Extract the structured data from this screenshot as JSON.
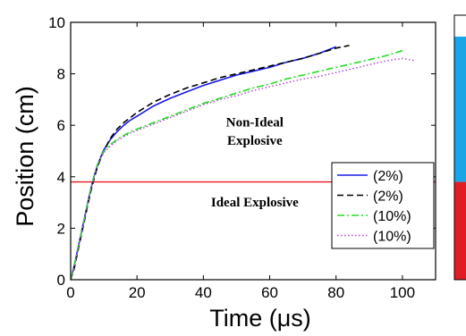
{
  "chart_data": {
    "type": "line",
    "xlabel": "Time (μs)",
    "ylabel": "Position (cm)",
    "xlim": [
      0,
      110
    ],
    "ylim": [
      0,
      10
    ],
    "xticks": [
      "0",
      "20",
      "40",
      "60",
      "80",
      "100"
    ],
    "yticks": [
      "0",
      "2",
      "4",
      "6",
      "8",
      "10"
    ],
    "grid": false,
    "legend_position": "lower-right",
    "threshold": {
      "y": 3.8,
      "color": "#e8141c"
    },
    "annotations": [
      {
        "text": "Non-Ideal",
        "x": 55.5,
        "y": 5.95
      },
      {
        "text": "Explosive",
        "x": 55.5,
        "y": 5.25
      },
      {
        "text": "Ideal Explosive",
        "x": 55.5,
        "y": 2.85
      }
    ],
    "series": [
      {
        "name": "(2%)",
        "color": "#1a1ae6",
        "dash": "",
        "width": 1.6,
        "x": [
          0,
          1,
          2,
          3,
          4,
          5,
          6,
          7,
          8,
          9,
          10,
          12,
          14,
          16,
          18,
          20,
          25,
          30,
          35,
          40,
          45,
          50,
          55,
          60,
          65,
          70,
          75,
          80
        ],
        "y": [
          0.0,
          0.5,
          1.1,
          1.7,
          2.3,
          2.9,
          3.5,
          4.0,
          4.4,
          4.75,
          5.05,
          5.45,
          5.75,
          6.0,
          6.2,
          6.35,
          6.75,
          7.05,
          7.3,
          7.55,
          7.75,
          7.95,
          8.1,
          8.25,
          8.45,
          8.6,
          8.8,
          9.05
        ]
      },
      {
        "name": "(2%)",
        "color": "#000000",
        "dash": "7,4",
        "width": 1.6,
        "x": [
          0,
          1,
          2,
          3,
          4,
          5,
          6,
          7,
          8,
          9,
          10,
          12,
          14,
          16,
          18,
          20,
          25,
          30,
          35,
          40,
          45,
          50,
          55,
          60,
          65,
          70,
          75,
          80,
          84
        ],
        "y": [
          0.0,
          0.4,
          1.0,
          1.6,
          2.2,
          2.8,
          3.4,
          3.9,
          4.35,
          4.7,
          5.0,
          5.5,
          5.85,
          6.1,
          6.3,
          6.5,
          6.9,
          7.2,
          7.45,
          7.65,
          7.85,
          8.0,
          8.15,
          8.3,
          8.45,
          8.6,
          8.8,
          9.0,
          9.1
        ]
      },
      {
        "name": "(10%)",
        "color": "#22dd22",
        "dash": "8,3,2,3",
        "width": 1.6,
        "x": [
          0,
          1,
          2,
          3,
          4,
          5,
          6,
          7,
          8,
          9,
          10,
          12,
          14,
          16,
          18,
          20,
          25,
          30,
          35,
          40,
          45,
          50,
          55,
          60,
          65,
          70,
          75,
          80,
          85,
          90,
          95,
          100
        ],
        "y": [
          0.0,
          0.5,
          1.1,
          1.7,
          2.3,
          2.9,
          3.5,
          4.0,
          4.45,
          4.75,
          5.0,
          5.25,
          5.45,
          5.6,
          5.75,
          5.85,
          6.1,
          6.35,
          6.6,
          6.85,
          7.05,
          7.25,
          7.45,
          7.6,
          7.8,
          7.95,
          8.1,
          8.25,
          8.4,
          8.55,
          8.7,
          8.9
        ]
      },
      {
        "name": "(10%)",
        "color": "#b040d8",
        "dash": "1.5,2.5",
        "width": 1.4,
        "x": [
          0,
          1,
          2,
          3,
          4,
          5,
          6,
          7,
          8,
          9,
          10,
          12,
          14,
          16,
          18,
          20,
          25,
          30,
          35,
          40,
          45,
          50,
          55,
          60,
          65,
          70,
          75,
          80,
          85,
          90,
          95,
          100,
          104
        ],
        "y": [
          0.0,
          0.45,
          1.05,
          1.65,
          2.25,
          2.85,
          3.45,
          3.95,
          4.4,
          4.7,
          4.95,
          5.2,
          5.4,
          5.55,
          5.7,
          5.8,
          6.05,
          6.3,
          6.55,
          6.8,
          7.0,
          7.15,
          7.35,
          7.5,
          7.65,
          7.8,
          7.9,
          8.05,
          8.2,
          8.35,
          8.5,
          8.6,
          8.5
        ]
      }
    ],
    "colorbar": {
      "segments": [
        {
          "from": 3.8,
          "to": 0,
          "color": "#e01c24"
        },
        {
          "from": 9.45,
          "to": 3.8,
          "color": "#1aa6e6"
        },
        {
          "from": 10,
          "to": 9.45,
          "color": "#ffffff"
        }
      ]
    }
  }
}
